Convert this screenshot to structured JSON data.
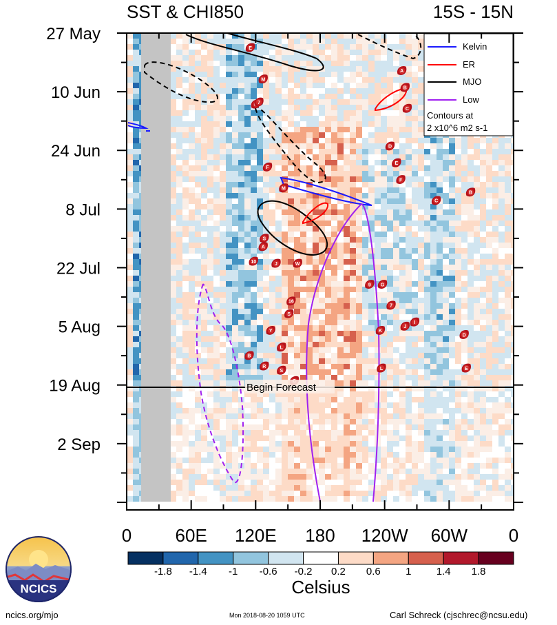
{
  "chart_data": {
    "type": "heatmap",
    "title_left": "SST & CHI850",
    "title_right": "15S - 15N",
    "y_tick_labels": [
      "27 May",
      "10 Jun",
      "24 Jun",
      "8 Jul",
      "22 Jul",
      "5 Aug",
      "19 Aug",
      "2 Sep"
    ],
    "x_tick_labels": [
      "0",
      "60E",
      "120E",
      "180",
      "120W",
      "60W",
      "0"
    ],
    "xlim_deg_east": [
      0,
      360
    ],
    "ylim_days_from_27_may": [
      0,
      110
    ],
    "forecast_line_label": "Begin Forecast",
    "forecast_start_day": 84,
    "legend": {
      "entries": [
        {
          "label": "Kelvin",
          "color": "#1a1aff"
        },
        {
          "label": "ER",
          "color": "#ff0000"
        },
        {
          "label": "MJO",
          "color": "#000000"
        },
        {
          "label": "Low",
          "color": "#a020f0"
        }
      ],
      "note_line1": "Contours at",
      "note_line2": "2 x10^6 m2 s-1"
    },
    "colorbar": {
      "tick_labels": [
        "-1.8",
        "-1.4",
        "-1",
        "-0.6",
        "-0.2",
        "0.2",
        "0.6",
        "1",
        "1.4",
        "1.8"
      ],
      "colors": [
        "#053061",
        "#2166ac",
        "#4393c3",
        "#92c5de",
        "#d1e5f0",
        "#ffffff",
        "#fddbc7",
        "#f4a582",
        "#d6604d",
        "#b2182b",
        "#67001f"
      ],
      "label": "Celsius"
    },
    "storms": [
      {
        "label": "E",
        "lon": 115,
        "day": 3.5
      },
      {
        "label": "M",
        "lon": 127,
        "day": 11
      },
      {
        "label": "G",
        "lon": 120,
        "day": 17
      },
      {
        "label": "7",
        "lon": 123,
        "day": 16.5
      },
      {
        "label": "A",
        "lon": 256,
        "day": 9
      },
      {
        "label": "B",
        "lon": 259,
        "day": 13
      },
      {
        "label": "C",
        "lon": 261,
        "day": 18
      },
      {
        "label": "D",
        "lon": 245,
        "day": 27
      },
      {
        "label": "E",
        "lon": 251,
        "day": 31
      },
      {
        "label": "F",
        "lon": 255,
        "day": 35
      },
      {
        "label": "F",
        "lon": 131,
        "day": 32
      },
      {
        "label": "M",
        "lon": 146,
        "day": 37
      },
      {
        "label": "C",
        "lon": 288,
        "day": 40
      },
      {
        "label": "B",
        "lon": 320,
        "day": 38
      },
      {
        "label": "S",
        "lon": 128,
        "day": 49
      },
      {
        "label": "A",
        "lon": 127,
        "day": 51
      },
      {
        "label": "10",
        "lon": 118,
        "day": 54.5
      },
      {
        "label": "J",
        "lon": 139,
        "day": 55
      },
      {
        "label": "W",
        "lon": 159,
        "day": 55
      },
      {
        "label": "9",
        "lon": 226,
        "day": 60
      },
      {
        "label": "G",
        "lon": 238,
        "day": 60
      },
      {
        "label": "16",
        "lon": 153,
        "day": 64
      },
      {
        "label": "S",
        "lon": 151,
        "day": 67
      },
      {
        "label": "7",
        "lon": 246,
        "day": 65
      },
      {
        "label": "I",
        "lon": 268,
        "day": 69
      },
      {
        "label": "J",
        "lon": 259,
        "day": 70
      },
      {
        "label": "K",
        "lon": 236,
        "day": 71
      },
      {
        "label": "Y",
        "lon": 134,
        "day": 71
      },
      {
        "label": "D",
        "lon": 314,
        "day": 72
      },
      {
        "label": "L",
        "lon": 144,
        "day": 75
      },
      {
        "label": "B",
        "lon": 114,
        "day": 77
      },
      {
        "label": "L",
        "lon": 237,
        "day": 80
      },
      {
        "label": "E",
        "lon": 316,
        "day": 80
      },
      {
        "label": "R",
        "lon": 128,
        "day": 79.5
      },
      {
        "label": "S",
        "lon": 144,
        "day": 80.5
      },
      {
        "label": "C",
        "lon": 156,
        "day": 83
      }
    ]
  },
  "footer": {
    "left": "ncics.org/mjo",
    "center": "Mon 2018-08-20 1059 UTC",
    "right": "Carl Schreck (cjschrec@ncsu.edu)"
  },
  "logo_text": "NCICS"
}
